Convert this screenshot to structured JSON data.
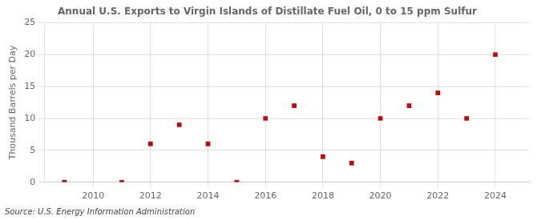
{
  "chart_data": {
    "type": "scatter",
    "title": "Annual U.S. Exports to Virgin Islands of Distillate Fuel Oil, 0 to 15 ppm Sulfur",
    "ylabel": "Thousand Barrels per Day",
    "annotations": [
      "Source: U.S. Energy Information Administration"
    ],
    "x": [
      2009,
      2011,
      2012,
      2013,
      2014,
      2015,
      2016,
      2017,
      2018,
      2019,
      2020,
      2021,
      2022,
      2023,
      2024
    ],
    "values": [
      0.0,
      0.0,
      6.0,
      9.0,
      6.0,
      0.0,
      10.0,
      12.0,
      4.0,
      3.0,
      10.0,
      12.0,
      14.0,
      10.0,
      20.0
    ],
    "color": "#cc0000",
    "marker": "square",
    "xlim": [
      2008.3,
      2025.2
    ],
    "xticks": [
      2010,
      2012,
      2014,
      2016,
      2018,
      2020,
      2022,
      2024
    ],
    "ylim": [
      0,
      25
    ],
    "yticks": [
      0,
      5,
      10,
      15,
      20,
      25
    ],
    "grid": true
  }
}
